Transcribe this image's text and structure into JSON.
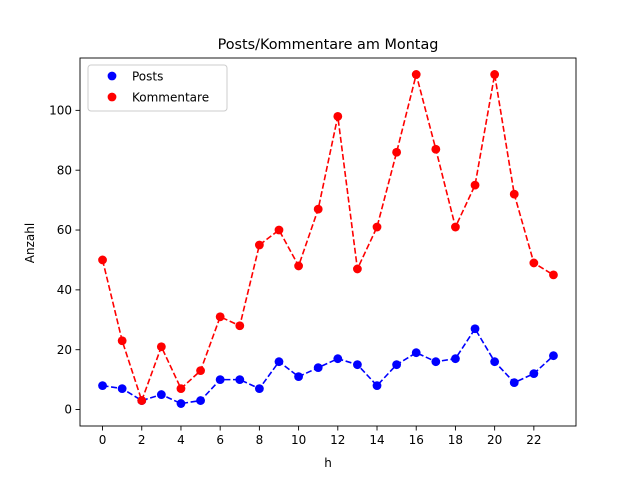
{
  "chart_data": {
    "type": "line",
    "title": "Posts/Kommentare am Montag",
    "xlabel": "h",
    "ylabel": "Anzahl",
    "xlim": [
      -1.15,
      24.15
    ],
    "ylim": [
      -5.5,
      117.5
    ],
    "xticks": [
      "0",
      "2",
      "4",
      "6",
      "8",
      "10",
      "12",
      "14",
      "16",
      "18",
      "20",
      "22"
    ],
    "yticks": [
      "0",
      "20",
      "40",
      "60",
      "80",
      "100"
    ],
    "grid": false,
    "legend_position": "top-left",
    "x": [
      0,
      1,
      2,
      3,
      4,
      5,
      6,
      7,
      8,
      9,
      10,
      11,
      12,
      13,
      14,
      15,
      16,
      17,
      18,
      19,
      20,
      21,
      22,
      23
    ],
    "series": [
      {
        "name": "Posts",
        "color": "#0000ff",
        "values": [
          8,
          7,
          3,
          5,
          2,
          3,
          10,
          10,
          7,
          16,
          11,
          14,
          17,
          15,
          8,
          15,
          19,
          16,
          17,
          27,
          16,
          9,
          12,
          18
        ]
      },
      {
        "name": "Kommentare",
        "color": "#ff0000",
        "values": [
          50,
          23,
          3,
          21,
          7,
          13,
          31,
          28,
          55,
          60,
          48,
          67,
          98,
          47,
          61,
          86,
          112,
          87,
          61,
          75,
          112,
          72,
          49,
          45
        ]
      }
    ]
  }
}
